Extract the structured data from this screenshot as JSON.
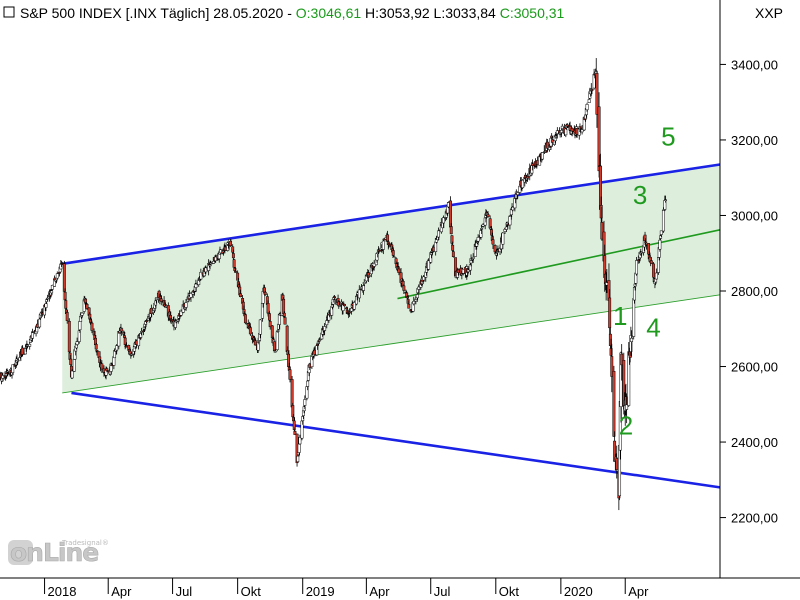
{
  "header": {
    "instrument": "S&P 500 INDEX [.INX  Täglich] 28.05.2020 - ",
    "open": "O:3046,61",
    "high": "H:3053,92",
    "low": "L:3033,84",
    "close": "C:3050,31",
    "symbol": "XXP"
  },
  "watermark": {
    "brand": "onLine",
    "small": "Tradesignal®"
  },
  "colors": {
    "channel_line": "#1a22e6",
    "channel_fill": "#ddeedd",
    "midline": "#1f9a1f",
    "lower_green": "#2c9f2c",
    "wave_label": "#1f9a1f",
    "candle_up": "#ffffff",
    "candle_down": "#d23a2c",
    "candle_outline": "#000000"
  },
  "chart_data": {
    "type": "candlestick",
    "title": "S&P 500 INDEX [.INX  Täglich] 28.05.2020",
    "ohlc_last": {
      "open": 3046.61,
      "high": 3053.92,
      "low": 3033.84,
      "close": 3050.31
    },
    "y_ticks": [
      {
        "value": 2200,
        "label": "2200,00"
      },
      {
        "value": 2400,
        "label": "2400,00"
      },
      {
        "value": 2600,
        "label": "2600,00"
      },
      {
        "value": 2800,
        "label": "2800,00"
      },
      {
        "value": 3000,
        "label": "3000,00"
      },
      {
        "value": 3200,
        "label": "3200,00"
      },
      {
        "value": 3400,
        "label": "3400,00"
      }
    ],
    "ylim": [
      2040,
      3560
    ],
    "x_ticks": [
      {
        "date": "2018-01-01",
        "label": "2018"
      },
      {
        "date": "2018-04-01",
        "label": "Apr"
      },
      {
        "date": "2018-07-01",
        "label": "Jul"
      },
      {
        "date": "2018-10-01",
        "label": "Okt"
      },
      {
        "date": "2019-01-01",
        "label": "2019"
      },
      {
        "date": "2019-04-01",
        "label": "Apr"
      },
      {
        "date": "2019-07-01",
        "label": "Jul"
      },
      {
        "date": "2019-10-01",
        "label": "Okt"
      },
      {
        "date": "2020-01-01",
        "label": "2020"
      },
      {
        "date": "2020-04-01",
        "label": "Apr"
      }
    ],
    "xlim": [
      "2017-10-30",
      "2020-08-13"
    ],
    "price_anchors": [
      [
        "2017-10-30",
        2570
      ],
      [
        "2017-11-15",
        2590
      ],
      [
        "2017-12-15",
        2680
      ],
      [
        "2018-01-26",
        2872
      ],
      [
        "2018-02-08",
        2580
      ],
      [
        "2018-02-26",
        2780
      ],
      [
        "2018-03-23",
        2590
      ],
      [
        "2018-04-02",
        2580
      ],
      [
        "2018-04-18",
        2700
      ],
      [
        "2018-05-03",
        2630
      ],
      [
        "2018-06-12",
        2790
      ],
      [
        "2018-07-02",
        2710
      ],
      [
        "2018-08-10",
        2840
      ],
      [
        "2018-09-20",
        2930
      ],
      [
        "2018-10-11",
        2730
      ],
      [
        "2018-10-29",
        2640
      ],
      [
        "2018-11-07",
        2810
      ],
      [
        "2018-11-23",
        2640
      ],
      [
        "2018-12-03",
        2790
      ],
      [
        "2018-12-24",
        2350
      ],
      [
        "2019-01-10",
        2600
      ],
      [
        "2019-02-15",
        2780
      ],
      [
        "2019-03-08",
        2740
      ],
      [
        "2019-04-30",
        2945
      ],
      [
        "2019-06-03",
        2745
      ],
      [
        "2019-07-26",
        3025
      ],
      [
        "2019-08-05",
        2840
      ],
      [
        "2019-08-23",
        2860
      ],
      [
        "2019-09-19",
        3005
      ],
      [
        "2019-10-02",
        2890
      ],
      [
        "2019-11-01",
        3070
      ],
      [
        "2019-12-31",
        3230
      ],
      [
        "2020-01-31",
        3225
      ],
      [
        "2020-02-19",
        3385
      ],
      [
        "2020-02-28",
        2955
      ],
      [
        "2020-03-09",
        2750
      ],
      [
        "2020-03-16",
        2400
      ],
      [
        "2020-03-23",
        2240
      ],
      [
        "2020-03-26",
        2630
      ],
      [
        "2020-04-01",
        2480
      ],
      [
        "2020-04-17",
        2875
      ],
      [
        "2020-04-29",
        2940
      ],
      [
        "2020-05-13",
        2820
      ],
      [
        "2020-05-28",
        3050
      ]
    ],
    "overlays": [
      {
        "name": "upper-channel",
        "from": [
          "2018-01-26",
          2872
        ],
        "to": [
          "2020-08-13",
          3135
        ]
      },
      {
        "name": "lower-channel",
        "from": [
          "2018-02-08",
          2530
        ],
        "to": [
          "2020-08-13",
          2280
        ]
      },
      {
        "name": "midline",
        "from": [
          "2019-05-15",
          2780
        ],
        "to": [
          "2020-08-13",
          2962
        ]
      },
      {
        "name": "lower-green",
        "from": [
          "2018-01-26",
          2530
        ],
        "to": [
          "2020-08-13",
          2790
        ]
      }
    ],
    "wave_labels": [
      {
        "label": "1",
        "date": "2020-03-25",
        "price": 2710
      },
      {
        "label": "2",
        "date": "2020-04-02",
        "price": 2420
      },
      {
        "label": "3",
        "date": "2020-04-22",
        "price": 3030
      },
      {
        "label": "4",
        "date": "2020-05-11",
        "price": 2680
      },
      {
        "label": "5",
        "date": "2020-06-01",
        "price": 3185
      }
    ]
  }
}
